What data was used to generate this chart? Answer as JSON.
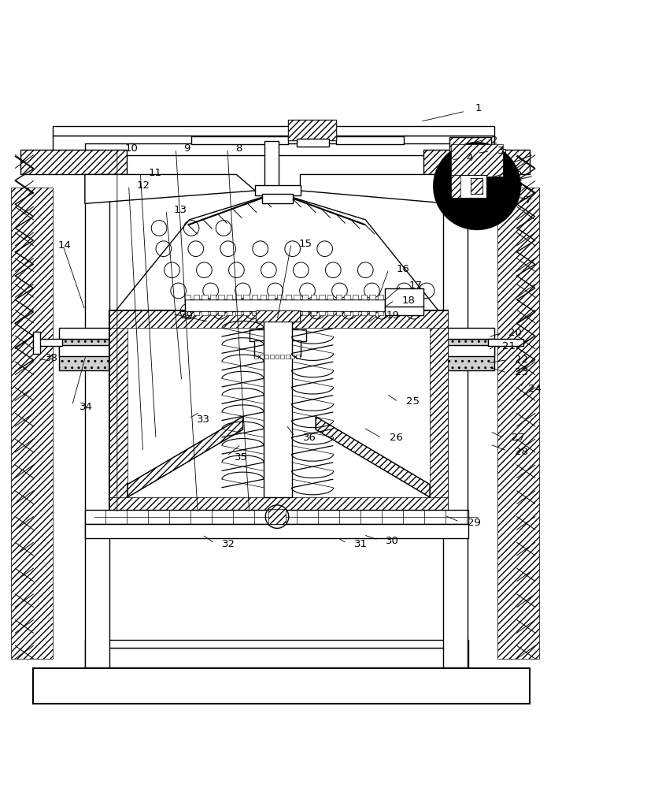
{
  "bg_color": "#ffffff",
  "line_color": "#000000",
  "fig_width": 8.22,
  "fig_height": 10.0
}
